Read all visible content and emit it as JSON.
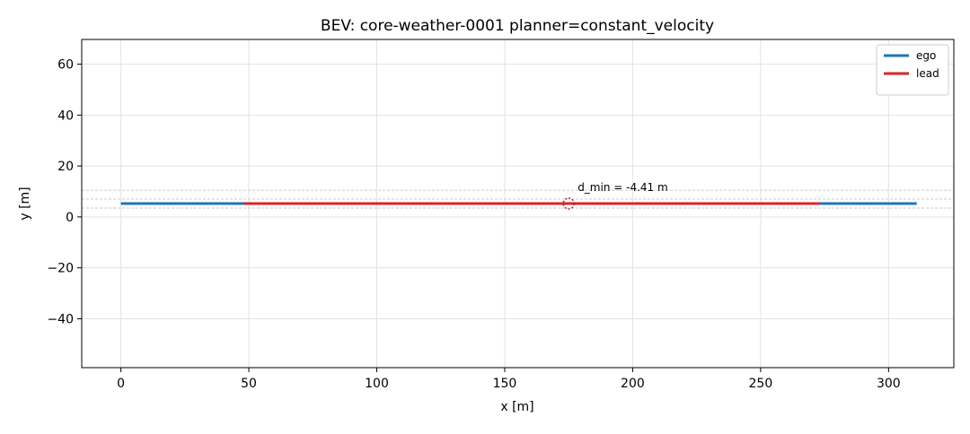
{
  "chart_data": {
    "type": "line",
    "title": "BEV: core-weather-0001  planner=constant_velocity",
    "xlabel": "x [m]",
    "ylabel": "y [m]",
    "series": [
      {
        "name": "ego",
        "color": "#1f77b4",
        "x": [
          0,
          311
        ],
        "values": [
          5.25,
          5.25
        ]
      },
      {
        "name": "lead",
        "color": "#d62728",
        "x": [
          48,
          273
        ],
        "values": [
          5.25,
          5.25
        ]
      }
    ],
    "hlines": [
      3.5,
      7,
      10.5
    ],
    "marker": {
      "x": 175,
      "y": 5.25,
      "color": "#b22222"
    },
    "annotation": "d_min = -4.41 m",
    "xlim": [
      -15.3,
      325.5
    ],
    "ylim": [
      -59.2,
      69.7
    ],
    "xticks": [
      0,
      50,
      100,
      150,
      200,
      250,
      300
    ],
    "yticks": [
      {
        "value": -40,
        "label": "−40"
      },
      {
        "value": -20,
        "label": "−20"
      },
      0,
      20,
      40,
      60
    ],
    "grid": true,
    "legend": "upper right"
  }
}
